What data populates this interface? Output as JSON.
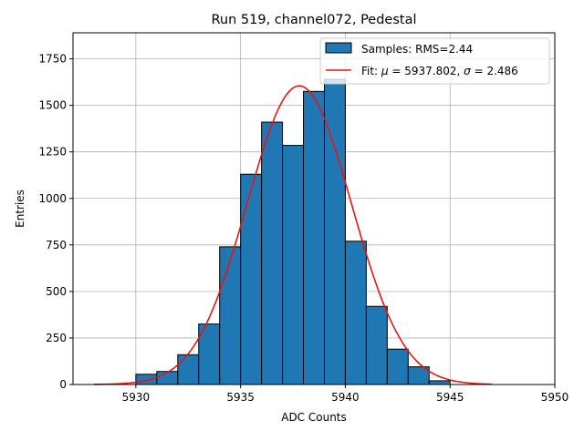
{
  "chart_data": {
    "type": "bar",
    "title": "Run 519, channel072, Pedestal",
    "xlabel": "ADC Counts",
    "ylabel": "Entries",
    "xlim": [
      5927.0,
      5950.0
    ],
    "ylim": [
      0,
      1890
    ],
    "xticks": [
      5930,
      5935,
      5940,
      5945,
      5950
    ],
    "yticks": [
      0,
      250,
      500,
      750,
      1000,
      1250,
      1500,
      1750
    ],
    "grid": true,
    "legend_position": "top-right",
    "histogram": {
      "name": "Samples: RMS=2.44",
      "bin_edges": [
        5930,
        5931,
        5932,
        5933,
        5934,
        5935,
        5936,
        5937,
        5938,
        5939,
        5940,
        5941,
        5942,
        5943,
        5944,
        5945
      ],
      "counts": [
        55,
        70,
        160,
        325,
        740,
        1130,
        1410,
        1285,
        1575,
        1640,
        770,
        420,
        190,
        95,
        20
      ],
      "color": "#1f77b4",
      "edgecolor": "#000000"
    },
    "fit": {
      "name": "Fit: μ = 5937.802, σ = 2.486",
      "label_prefix": "Fit: ",
      "mu_symbol": "μ",
      "mu_text": " = 5937.802, ",
      "sigma_symbol": "σ",
      "sigma_text": " = 2.486",
      "mu": 5937.802,
      "sigma": 2.486,
      "amplitude": 1605,
      "x_range": [
        5928.0,
        5947.0
      ],
      "color": "#e8150f"
    }
  }
}
